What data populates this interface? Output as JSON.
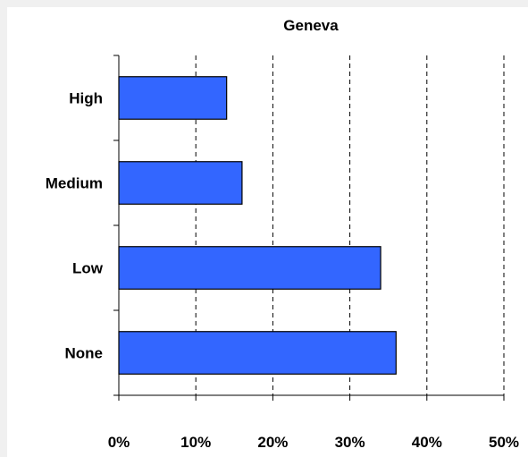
{
  "chart_data": {
    "type": "bar",
    "orientation": "horizontal",
    "title": "Geneva",
    "categories": [
      "High",
      "Medium",
      "Low",
      "None"
    ],
    "values": [
      14,
      16,
      34,
      36
    ],
    "xlim": [
      0,
      50
    ],
    "x_ticks": [
      0,
      10,
      20,
      30,
      40,
      50
    ],
    "x_tick_labels": [
      "0%",
      "10%",
      "20%",
      "30%",
      "40%",
      "50%"
    ],
    "xlabel": "",
    "ylabel": "",
    "grid": "vertical dashed",
    "legend": "none",
    "colors": {
      "bar_fill": "#3366ff",
      "bar_stroke": "#000000",
      "grid": "#000000",
      "background": "#ffffff",
      "page": "#f0f0f0"
    }
  }
}
